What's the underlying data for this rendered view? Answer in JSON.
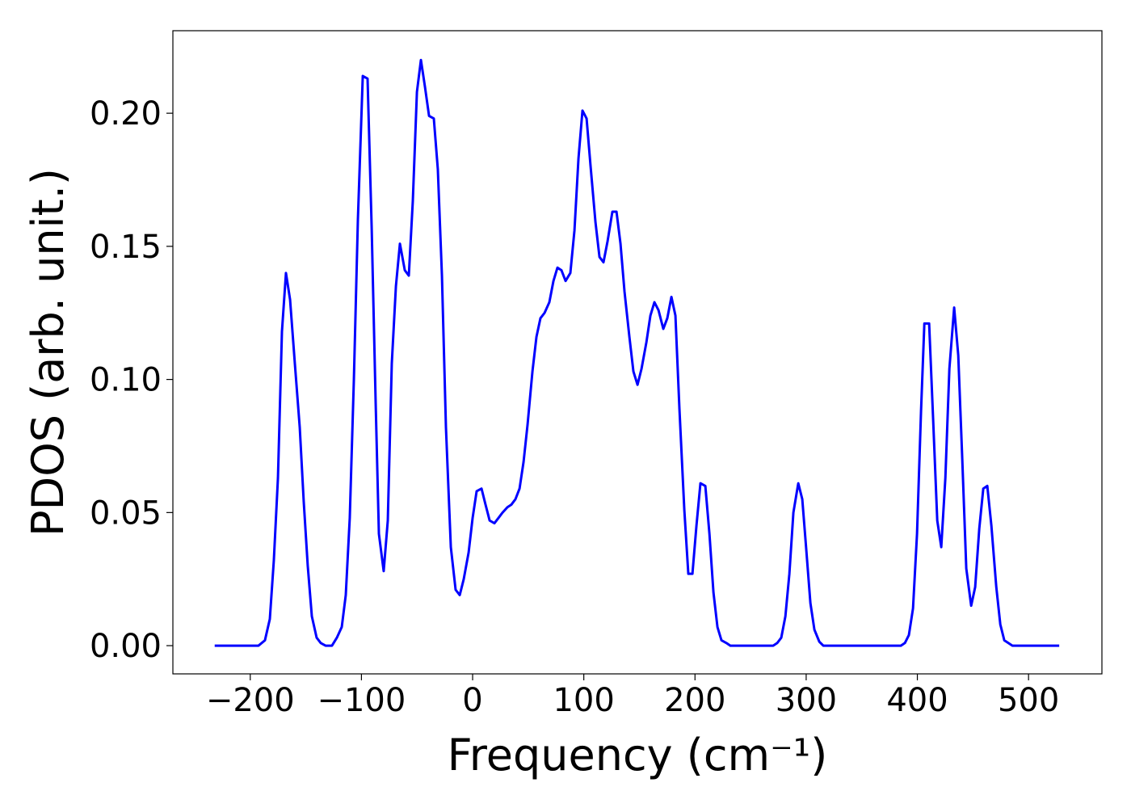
{
  "chart_data": {
    "type": "line",
    "x_label": "Frequency (cm⁻¹)",
    "y_label": "PDOS (arb. unit.)",
    "color": "#0000ff",
    "x": [
      -232,
      -192.6,
      -186.8,
      -182.4,
      -178.8,
      -175.1,
      -171.5,
      -167.9,
      -164.2,
      -159.9,
      -155.5,
      -151.9,
      -148.3,
      -144.6,
      -140.3,
      -136.6,
      -132.3,
      -126.5,
      -122.1,
      -117.7,
      -114.1,
      -110.5,
      -106.8,
      -103.2,
      -98.8,
      -94.5,
      -90.8,
      -87.2,
      -84.3,
      -80.0,
      -76.3,
      -72.7,
      -69.0,
      -65.4,
      -61.0,
      -57.4,
      -53.8,
      -50.1,
      -46.5,
      -42.9,
      -39.2,
      -34.9,
      -31.3,
      -27.6,
      -24.0,
      -19.6,
      -15.3,
      -11.6,
      -8.0,
      -3.6,
      0,
      3.6,
      8.0,
      11.6,
      15.3,
      19.6,
      23.3,
      26.9,
      31.3,
      34.9,
      38.5,
      42.2,
      45.8,
      49.4,
      53.8,
      57.4,
      61.0,
      64.7,
      69.0,
      72.7,
      76.3,
      79.9,
      83.6,
      87.9,
      91.6,
      95.2,
      98.8,
      102.5,
      106.1,
      110.5,
      114.1,
      117.7,
      121.4,
      125.7,
      129.4,
      133.0,
      136.6,
      141.0,
      144.6,
      148.3,
      151.9,
      156.3,
      159.9,
      163.5,
      167.2,
      171.5,
      175.1,
      178.8,
      182.4,
      186.0,
      190.4,
      194.0,
      197.7,
      201.3,
      204.9,
      209.3,
      213.0,
      216.6,
      220.2,
      223.8,
      228.2,
      231.8,
      270.3,
      274.0,
      277.6,
      281.3,
      284.9,
      288.5,
      292.9,
      296.5,
      300.1,
      303.8,
      307.4,
      311.8,
      315.4,
      319.8,
      385.2,
      388.8,
      392.4,
      396.1,
      399.7,
      403.3,
      406.3,
      410.6,
      414.2,
      417.9,
      421.5,
      425.2,
      428.8,
      433.1,
      436.8,
      440.4,
      444.0,
      448.4,
      452.0,
      455.7,
      459.3,
      462.9,
      466.6,
      471.0,
      474.6,
      478.2,
      481.8,
      485.5,
      527.6
    ],
    "values": [
      0,
      0,
      0.002,
      0.01,
      0.032,
      0.063,
      0.118,
      0.14,
      0.13,
      0.106,
      0.082,
      0.054,
      0.03,
      0.011,
      0.003,
      0.001,
      0,
      0,
      0.003,
      0.007,
      0.019,
      0.048,
      0.1,
      0.16,
      0.214,
      0.213,
      0.157,
      0.091,
      0.042,
      0.028,
      0.047,
      0.106,
      0.135,
      0.151,
      0.141,
      0.139,
      0.167,
      0.208,
      0.22,
      0.21,
      0.199,
      0.198,
      0.179,
      0.139,
      0.082,
      0.037,
      0.021,
      0.019,
      0.025,
      0.035,
      0.048,
      0.058,
      0.059,
      0.053,
      0.047,
      0.046,
      0.048,
      0.05,
      0.052,
      0.053,
      0.055,
      0.059,
      0.069,
      0.083,
      0.103,
      0.116,
      0.123,
      0.125,
      0.129,
      0.137,
      0.142,
      0.141,
      0.137,
      0.14,
      0.156,
      0.183,
      0.201,
      0.198,
      0.18,
      0.159,
      0.146,
      0.144,
      0.152,
      0.163,
      0.163,
      0.151,
      0.133,
      0.116,
      0.103,
      0.098,
      0.104,
      0.114,
      0.124,
      0.129,
      0.126,
      0.119,
      0.123,
      0.131,
      0.124,
      0.089,
      0.051,
      0.027,
      0.027,
      0.045,
      0.061,
      0.06,
      0.042,
      0.02,
      0.007,
      0.002,
      0.001,
      0,
      0,
      0.001,
      0.003,
      0.011,
      0.027,
      0.05,
      0.061,
      0.055,
      0.036,
      0.016,
      0.006,
      0.0015,
      0,
      0,
      0,
      0.001,
      0.004,
      0.014,
      0.042,
      0.088,
      0.121,
      0.121,
      0.085,
      0.047,
      0.037,
      0.063,
      0.104,
      0.127,
      0.109,
      0.07,
      0.029,
      0.015,
      0.022,
      0.044,
      0.059,
      0.06,
      0.045,
      0.022,
      0.008,
      0.002,
      0.001,
      0,
      0
    ],
    "xlim": [
      -269.6,
      566
    ],
    "ylim": [
      -0.0106,
      0.231
    ],
    "xticks": [
      {
        "value": -200,
        "label": "−200"
      },
      {
        "value": -100,
        "label": "−100"
      },
      0,
      100,
      200,
      300,
      400,
      500
    ],
    "yticks": [
      {
        "value": 0,
        "label": "0.00"
      },
      {
        "value": 0.05,
        "label": "0.05"
      },
      {
        "value": 0.1,
        "label": "0.10"
      },
      {
        "value": 0.15,
        "label": "0.15"
      },
      {
        "value": 0.2,
        "label": "0.20"
      }
    ]
  }
}
